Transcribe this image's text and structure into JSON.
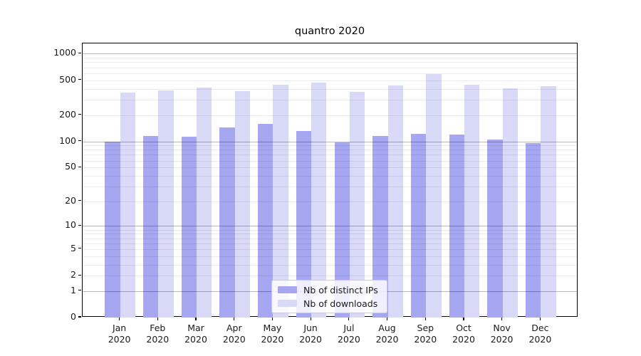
{
  "chart_data": {
    "type": "bar",
    "title": "quantro 2020",
    "year": "2020",
    "categories": [
      "Jan",
      "Feb",
      "Mar",
      "Apr",
      "May",
      "Jun",
      "Jul",
      "Aug",
      "Sep",
      "Oct",
      "Nov",
      "Dec"
    ],
    "series": [
      {
        "name": "Nb of distinct IPs",
        "color": "#a6a6f1",
        "values": [
          100,
          116,
          113,
          144,
          158,
          131,
          98,
          115,
          122,
          120,
          105,
          96
        ]
      },
      {
        "name": "Nb of downloads",
        "color": "#d9d9f8",
        "values": [
          361,
          379,
          411,
          372,
          441,
          472,
          370,
          433,
          590,
          445,
          408,
          427
        ]
      }
    ],
    "y_scale": "log1p",
    "y_ticks": [
      1000,
      500,
      200,
      100,
      50,
      20,
      10,
      5,
      2,
      1,
      0
    ],
    "y_major_gridlines": [
      1,
      10,
      100,
      1000
    ],
    "ylim_top": 1290,
    "grid": true,
    "legend_position": "inside-lower-center",
    "colors": {
      "grid_major": "rgba(0,0,0,0.28)",
      "grid_minor": "rgba(0,0,0,0.075)",
      "spine": "#000000",
      "background": "#ffffff"
    }
  }
}
